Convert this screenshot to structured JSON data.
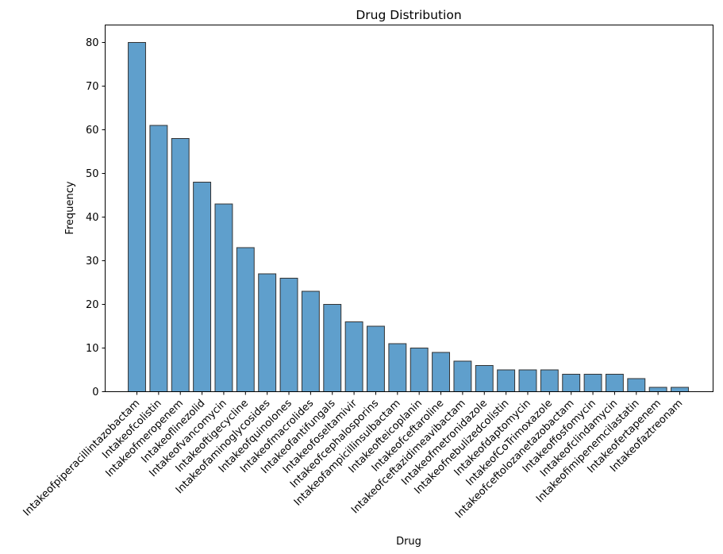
{
  "chart_data": {
    "type": "bar",
    "title": "Drug Distribution",
    "xlabel": "Drug",
    "ylabel": "Frequency",
    "ylim": [
      0,
      84
    ],
    "yticks": [
      0,
      10,
      20,
      30,
      40,
      50,
      60,
      70,
      80
    ],
    "grid": false,
    "legend": "none",
    "bar_color": "#5f9fcc",
    "edge_color": "#333333",
    "categories": [
      "Intakeofpiperacillintazobactam",
      "Intakeofcolistin",
      "Intakeofmeropenem",
      "Intakeoflinezolid",
      "Intakeofvancomycin",
      "Intakeoftigecycline",
      "Intakeofaminoglycosides",
      "Intakeofquinolones",
      "Intakeofmacrolides",
      "Intakeofantifungals",
      "Intakeofoseltamivir",
      "Intakeofcephalosporins",
      "Intakeofampicillinsulbactam",
      "Intakeofteicoplanin",
      "Intakeofceftaroline",
      "Intakeofceftazidimeavibactam",
      "Intakeofmetronidazole",
      "Intakeofnebulizedcolistin",
      "Intakeofdaptomycin",
      "IntakeofCoTrimoxazole",
      "Intakeofceftolozanetazobactam",
      "Intakeoffosfomycin",
      "Intakeofclindamycin",
      "Intakeofimipenemcilastatin",
      "Intakeofertapenem",
      "Intakeofaztreonam"
    ],
    "values": [
      80,
      61,
      58,
      48,
      43,
      33,
      27,
      26,
      23,
      20,
      16,
      15,
      11,
      10,
      9,
      7,
      6,
      5,
      5,
      5,
      4,
      4,
      4,
      3,
      1,
      1
    ]
  }
}
